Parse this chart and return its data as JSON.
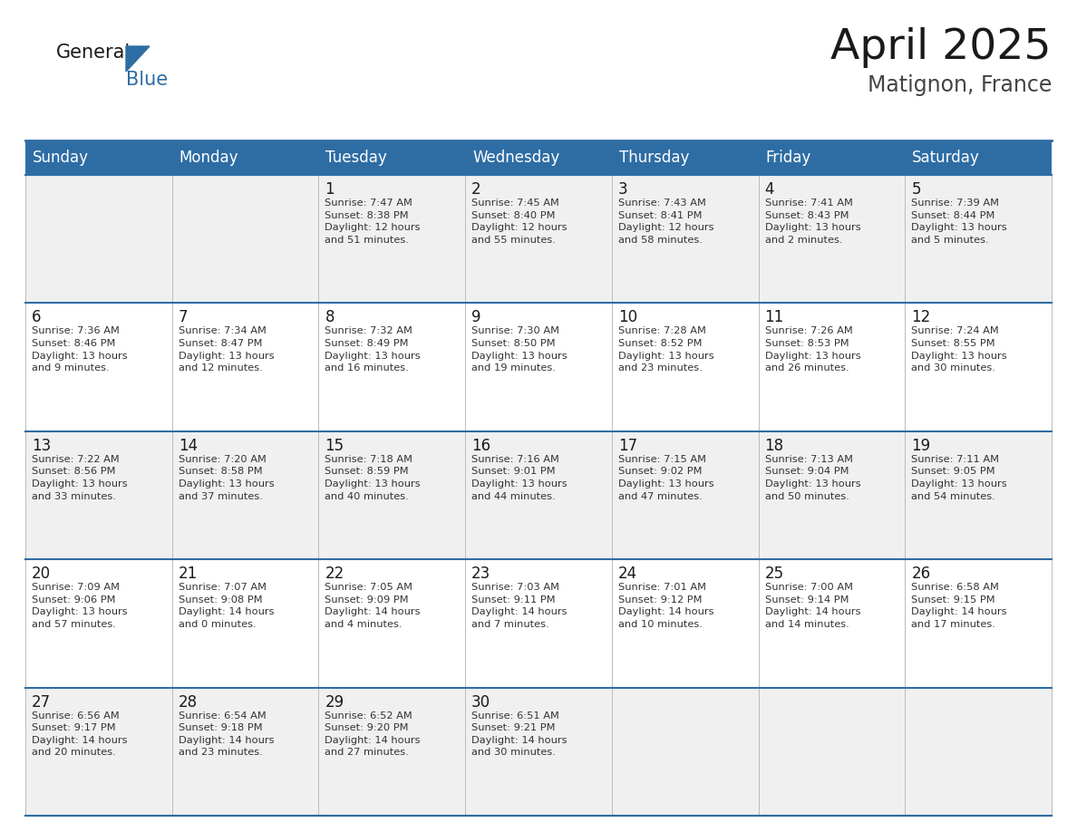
{
  "title": "April 2025",
  "subtitle": "Matignon, France",
  "header_bg": "#2E6DA4",
  "header_text_color": "#FFFFFF",
  "cell_bg_odd": "#F0F0F0",
  "cell_bg_even": "#FFFFFF",
  "cell_text_color": "#333333",
  "day_number_color": "#1a1a1a",
  "days_of_week": [
    "Sunday",
    "Monday",
    "Tuesday",
    "Wednesday",
    "Thursday",
    "Friday",
    "Saturday"
  ],
  "weeks": [
    [
      {
        "day": "",
        "info": ""
      },
      {
        "day": "",
        "info": ""
      },
      {
        "day": "1",
        "info": "Sunrise: 7:47 AM\nSunset: 8:38 PM\nDaylight: 12 hours\nand 51 minutes."
      },
      {
        "day": "2",
        "info": "Sunrise: 7:45 AM\nSunset: 8:40 PM\nDaylight: 12 hours\nand 55 minutes."
      },
      {
        "day": "3",
        "info": "Sunrise: 7:43 AM\nSunset: 8:41 PM\nDaylight: 12 hours\nand 58 minutes."
      },
      {
        "day": "4",
        "info": "Sunrise: 7:41 AM\nSunset: 8:43 PM\nDaylight: 13 hours\nand 2 minutes."
      },
      {
        "day": "5",
        "info": "Sunrise: 7:39 AM\nSunset: 8:44 PM\nDaylight: 13 hours\nand 5 minutes."
      }
    ],
    [
      {
        "day": "6",
        "info": "Sunrise: 7:36 AM\nSunset: 8:46 PM\nDaylight: 13 hours\nand 9 minutes."
      },
      {
        "day": "7",
        "info": "Sunrise: 7:34 AM\nSunset: 8:47 PM\nDaylight: 13 hours\nand 12 minutes."
      },
      {
        "day": "8",
        "info": "Sunrise: 7:32 AM\nSunset: 8:49 PM\nDaylight: 13 hours\nand 16 minutes."
      },
      {
        "day": "9",
        "info": "Sunrise: 7:30 AM\nSunset: 8:50 PM\nDaylight: 13 hours\nand 19 minutes."
      },
      {
        "day": "10",
        "info": "Sunrise: 7:28 AM\nSunset: 8:52 PM\nDaylight: 13 hours\nand 23 minutes."
      },
      {
        "day": "11",
        "info": "Sunrise: 7:26 AM\nSunset: 8:53 PM\nDaylight: 13 hours\nand 26 minutes."
      },
      {
        "day": "12",
        "info": "Sunrise: 7:24 AM\nSunset: 8:55 PM\nDaylight: 13 hours\nand 30 minutes."
      }
    ],
    [
      {
        "day": "13",
        "info": "Sunrise: 7:22 AM\nSunset: 8:56 PM\nDaylight: 13 hours\nand 33 minutes."
      },
      {
        "day": "14",
        "info": "Sunrise: 7:20 AM\nSunset: 8:58 PM\nDaylight: 13 hours\nand 37 minutes."
      },
      {
        "day": "15",
        "info": "Sunrise: 7:18 AM\nSunset: 8:59 PM\nDaylight: 13 hours\nand 40 minutes."
      },
      {
        "day": "16",
        "info": "Sunrise: 7:16 AM\nSunset: 9:01 PM\nDaylight: 13 hours\nand 44 minutes."
      },
      {
        "day": "17",
        "info": "Sunrise: 7:15 AM\nSunset: 9:02 PM\nDaylight: 13 hours\nand 47 minutes."
      },
      {
        "day": "18",
        "info": "Sunrise: 7:13 AM\nSunset: 9:04 PM\nDaylight: 13 hours\nand 50 minutes."
      },
      {
        "day": "19",
        "info": "Sunrise: 7:11 AM\nSunset: 9:05 PM\nDaylight: 13 hours\nand 54 minutes."
      }
    ],
    [
      {
        "day": "20",
        "info": "Sunrise: 7:09 AM\nSunset: 9:06 PM\nDaylight: 13 hours\nand 57 minutes."
      },
      {
        "day": "21",
        "info": "Sunrise: 7:07 AM\nSunset: 9:08 PM\nDaylight: 14 hours\nand 0 minutes."
      },
      {
        "day": "22",
        "info": "Sunrise: 7:05 AM\nSunset: 9:09 PM\nDaylight: 14 hours\nand 4 minutes."
      },
      {
        "day": "23",
        "info": "Sunrise: 7:03 AM\nSunset: 9:11 PM\nDaylight: 14 hours\nand 7 minutes."
      },
      {
        "day": "24",
        "info": "Sunrise: 7:01 AM\nSunset: 9:12 PM\nDaylight: 14 hours\nand 10 minutes."
      },
      {
        "day": "25",
        "info": "Sunrise: 7:00 AM\nSunset: 9:14 PM\nDaylight: 14 hours\nand 14 minutes."
      },
      {
        "day": "26",
        "info": "Sunrise: 6:58 AM\nSunset: 9:15 PM\nDaylight: 14 hours\nand 17 minutes."
      }
    ],
    [
      {
        "day": "27",
        "info": "Sunrise: 6:56 AM\nSunset: 9:17 PM\nDaylight: 14 hours\nand 20 minutes."
      },
      {
        "day": "28",
        "info": "Sunrise: 6:54 AM\nSunset: 9:18 PM\nDaylight: 14 hours\nand 23 minutes."
      },
      {
        "day": "29",
        "info": "Sunrise: 6:52 AM\nSunset: 9:20 PM\nDaylight: 14 hours\nand 27 minutes."
      },
      {
        "day": "30",
        "info": "Sunrise: 6:51 AM\nSunset: 9:21 PM\nDaylight: 14 hours\nand 30 minutes."
      },
      {
        "day": "",
        "info": ""
      },
      {
        "day": "",
        "info": ""
      },
      {
        "day": "",
        "info": ""
      }
    ]
  ],
  "logo_text_general": "General",
  "logo_text_blue": "Blue",
  "logo_triangle_color": "#2E6DA4",
  "title_fontsize": 34,
  "subtitle_fontsize": 17,
  "header_fontsize": 12,
  "day_number_fontsize": 12,
  "info_fontsize": 8.2,
  "logo_fontsize": 15
}
